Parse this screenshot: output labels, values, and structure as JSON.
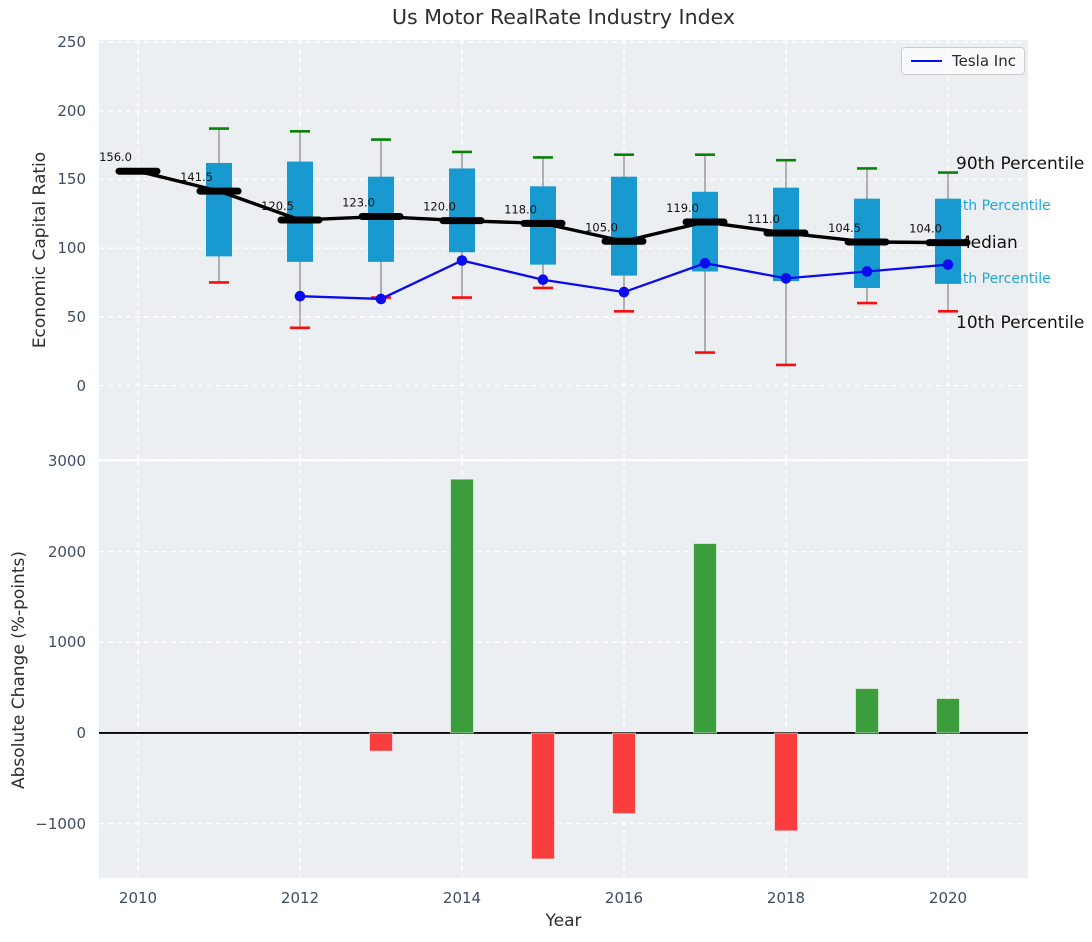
{
  "title": "Us Motor RealRate Industry Index",
  "legend": {
    "label": "Tesla Inc"
  },
  "colors": {
    "plot_bg": "#eceff1",
    "grid": "#ffffff",
    "tick_text": "#3e4c63",
    "box_fill": "#1899cf",
    "whisker": "#8c8c8c",
    "cap_90th": "#0a820a",
    "cap_10th": "#fb0d0d",
    "median": "#000000",
    "tesla_line": "#0b0bf0",
    "bar_positive": "#3c9d3c",
    "bar_negative": "#fa3d3d",
    "annotation_cyan": "#1ea8dc"
  },
  "chart_data": [
    {
      "type": "boxplot+line",
      "title": "Us Motor RealRate Industry Index",
      "ylabel": "Economic Capital Ratio",
      "ylim": [
        -53.5,
        251.5
      ],
      "yticks": [
        0,
        50,
        100,
        150,
        200,
        250
      ],
      "xticks": [
        2010,
        2012,
        2014,
        2016,
        2018,
        2020
      ],
      "grid": true,
      "legend_position": "upper right",
      "boxes": [
        {
          "year": 2010,
          "median": 156.0,
          "label": "156.0"
        },
        {
          "year": 2011,
          "p10": 75,
          "p25": 94,
          "median": 141.5,
          "p75": 162,
          "p90": 187,
          "label": "141.5"
        },
        {
          "year": 2012,
          "p10": 42,
          "p25": 90,
          "median": 120.5,
          "p75": 163,
          "p90": 185,
          "label": "120.5"
        },
        {
          "year": 2013,
          "p10": 64,
          "p25": 90,
          "median": 123.0,
          "p75": 152,
          "p90": 179,
          "label": "123.0"
        },
        {
          "year": 2014,
          "p10": 64,
          "p25": 97,
          "median": 120.0,
          "p75": 158,
          "p90": 170,
          "label": "120.0"
        },
        {
          "year": 2015,
          "p10": 71,
          "p25": 88,
          "median": 118.0,
          "p75": 145,
          "p90": 166,
          "label": "118.0"
        },
        {
          "year": 2016,
          "p10": 54,
          "p25": 80,
          "median": 105.0,
          "p75": 152,
          "p90": 168,
          "label": "105.0"
        },
        {
          "year": 2017,
          "p10": 24,
          "p25": 83,
          "median": 119.0,
          "p75": 141,
          "p90": 168,
          "label": "119.0"
        },
        {
          "year": 2018,
          "p10": 15,
          "p25": 76,
          "median": 111.0,
          "p75": 144,
          "p90": 164,
          "label": "111.0"
        },
        {
          "year": 2019,
          "p10": 60,
          "p25": 71,
          "median": 104.5,
          "p75": 136,
          "p90": 158,
          "label": "104.5"
        },
        {
          "year": 2020,
          "p10": 54,
          "p25": 74,
          "median": 104.0,
          "p75": 136,
          "p90": 155,
          "label": "104.0"
        }
      ],
      "series": [
        {
          "name": "Tesla Inc",
          "x": [
            2012,
            2013,
            2014,
            2015,
            2016,
            2017,
            2018,
            2019,
            2020
          ],
          "y": [
            65,
            63,
            91,
            77,
            68,
            89,
            78,
            83,
            88
          ]
        }
      ],
      "percentile_labels": [
        {
          "text": "90th Percentile",
          "anchor_value": 161,
          "style": "black"
        },
        {
          "text": "75th Percentile",
          "anchor_value": 131,
          "style": "cyan"
        },
        {
          "text": "Median",
          "anchor_value": 104,
          "style": "black"
        },
        {
          "text": "25th Percentile",
          "anchor_value": 77.5,
          "style": "cyan"
        },
        {
          "text": "10th Percentile",
          "anchor_value": 45.5,
          "style": "black"
        }
      ]
    },
    {
      "type": "bar",
      "ylabel": "Absolute Change (%-points)",
      "xlabel": "Year",
      "ylim": [
        -1600,
        3000
      ],
      "yticks": [
        -1000,
        0,
        1000,
        2000,
        3000
      ],
      "xticks": [
        2010,
        2012,
        2014,
        2016,
        2018,
        2020
      ],
      "grid": true,
      "years": [
        2010,
        2011,
        2012,
        2013,
        2014,
        2015,
        2016,
        2017,
        2018,
        2019,
        2020
      ],
      "values": [
        null,
        null,
        null,
        -200,
        2800,
        -1390,
        -890,
        2090,
        -1080,
        490,
        380
      ]
    }
  ]
}
